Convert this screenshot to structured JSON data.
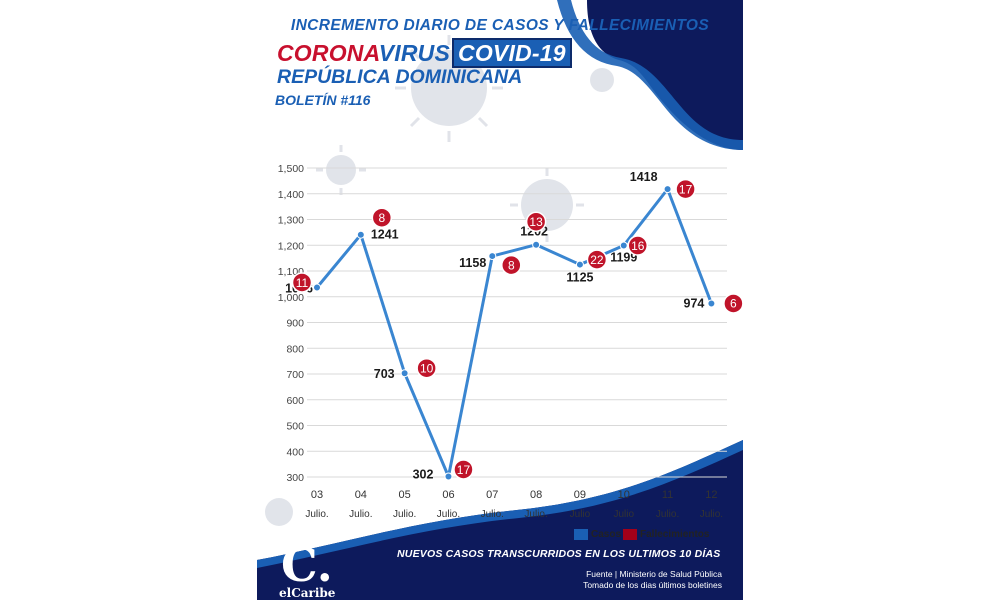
{
  "header": {
    "title": "INCREMENTO DIARIO DE CASOS Y FALLECIMIENTOS",
    "line2_red": "CORONA",
    "line2_blue": "VIRUS",
    "line2_box": "COVID-19",
    "line3": "REPÚBLICA DOMINICANA",
    "bulletin": "BOLETÍN #116"
  },
  "chart_data": {
    "type": "line",
    "categories": [
      "03",
      "04",
      "05",
      "06",
      "07",
      "08",
      "09",
      "10",
      "11",
      "12"
    ],
    "category_sublabels": [
      "Julio.",
      "Julio.",
      "Julio.",
      "Julio.",
      "Julio.",
      "Julio.",
      "Julio",
      "Julio",
      "Julio.",
      "Julio."
    ],
    "series": [
      {
        "name": "Casos",
        "values": [
          1036,
          1241,
          703,
          302,
          1158,
          1202,
          1125,
          1199,
          1418,
          974
        ]
      },
      {
        "name": "Fallecimientos",
        "values": [
          11,
          8,
          10,
          17,
          8,
          13,
          22,
          16,
          17,
          6
        ]
      }
    ],
    "ylim": [
      300,
      1500
    ],
    "yticks": [
      "300",
      "400",
      "500",
      "600",
      "700",
      "800",
      "900",
      "1,000",
      "1,100",
      "1,200",
      "1,300",
      "1,400",
      "1,500"
    ],
    "grid": true,
    "legend_placement": "bottom-right"
  },
  "legend": {
    "cases": "Casos",
    "deaths": "Fallecimientos"
  },
  "colors": {
    "line": "#3a86d1",
    "death_badge": "#c0142a",
    "title_blue": "#1a5fb4",
    "navy": "#0d1a5c"
  },
  "footer": {
    "main": "NUEVOS CASOS TRANSCURRIDOS EN LOS ULTIMOS 10 DÍAS",
    "source_line1": "Fuente | Ministerio de Salud Pública",
    "source_line2": "Tomado de  los dias últimos boletines"
  },
  "logo": {
    "letter": "C.",
    "text": "elCaribe"
  }
}
